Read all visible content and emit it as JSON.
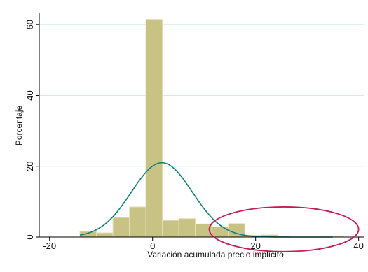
{
  "chart_data": {
    "type": "bar",
    "subtype": "histogram-with-normal-density",
    "title": "",
    "xlabel": "Variación acumulada precio implícito",
    "ylabel": "Porcentaje",
    "xlim": [
      -22,
      41
    ],
    "ylim": [
      0,
      63
    ],
    "xticks": [
      -20,
      0,
      20,
      40
    ],
    "yticks": [
      0,
      20,
      40,
      60
    ],
    "grid": "horizontal",
    "bin_width": 3.2,
    "bins": [
      {
        "start": -14.1,
        "value": 1.6
      },
      {
        "start": -10.9,
        "value": 1.2
      },
      {
        "start": -7.7,
        "value": 5.5
      },
      {
        "start": -4.5,
        "value": 8.5
      },
      {
        "start": -1.3,
        "value": 61.5
      },
      {
        "start": 1.9,
        "value": 4.7
      },
      {
        "start": 5.1,
        "value": 5.2
      },
      {
        "start": 8.3,
        "value": 3.7
      },
      {
        "start": 11.5,
        "value": 2.9
      },
      {
        "start": 14.7,
        "value": 3.8
      },
      {
        "start": 17.9,
        "value": 0.5
      },
      {
        "start": 21.1,
        "value": 0.6
      },
      {
        "start": 24.3,
        "value": 0.2
      },
      {
        "start": 27.5,
        "value": 0.1
      },
      {
        "start": 30.7,
        "value": 0.1
      },
      {
        "start": 33.9,
        "value": 0.1
      }
    ],
    "normal_curve": {
      "mean": 1.8,
      "peak": 21,
      "sd": 5.9,
      "x_range": [
        -14.1,
        35
      ]
    },
    "annotation": {
      "shape": "ellipse",
      "center": [
        25.5,
        2.2
      ],
      "radius": [
        14.5,
        6.3
      ]
    },
    "colors": {
      "bar_fill": "#c9c285",
      "bar_edge": "#e4dfb6",
      "curve": "#137f7a",
      "grid": "#d5ede9",
      "annotation": "#c21d55",
      "axis": "#000000"
    }
  }
}
